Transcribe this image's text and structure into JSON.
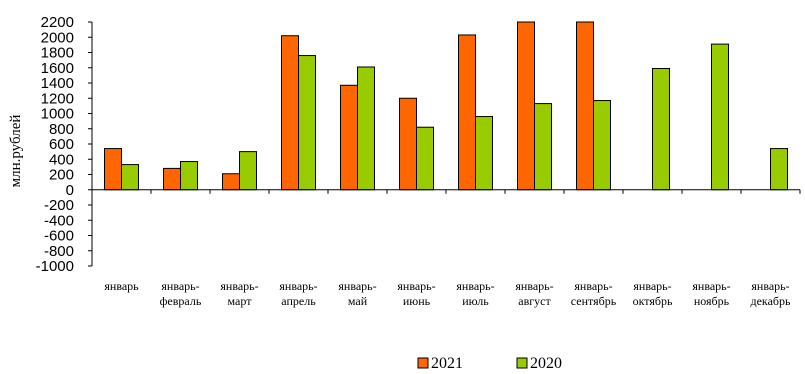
{
  "chart_data": {
    "type": "bar",
    "ylabel": "млн.рублей",
    "ylim": [
      -1000,
      2200
    ],
    "ytick_step": 200,
    "categories": [
      [
        "январь"
      ],
      [
        "январь-",
        "февраль"
      ],
      [
        "январь-",
        "март"
      ],
      [
        "январь-",
        "апрель"
      ],
      [
        "январь-",
        "май"
      ],
      [
        "январь-",
        "июнь"
      ],
      [
        "январь-",
        "июль"
      ],
      [
        "январь-",
        "август"
      ],
      [
        "январь-",
        "сентябрь"
      ],
      [
        "январь-",
        "октябрь"
      ],
      [
        "январь-",
        "ноябрь"
      ],
      [
        "январь-",
        "декабрь"
      ]
    ],
    "series": [
      {
        "name": "2021",
        "color": "#ff6600",
        "values": [
          540,
          280,
          210,
          2020,
          1370,
          1200,
          2030,
          2200,
          2200,
          null,
          null,
          null
        ]
      },
      {
        "name": "2020",
        "color": "#99cc00",
        "values": [
          330,
          370,
          500,
          1760,
          1610,
          820,
          960,
          1130,
          1170,
          1590,
          1910,
          540
        ]
      }
    ],
    "legend_position": "bottom-center",
    "grid": false
  }
}
